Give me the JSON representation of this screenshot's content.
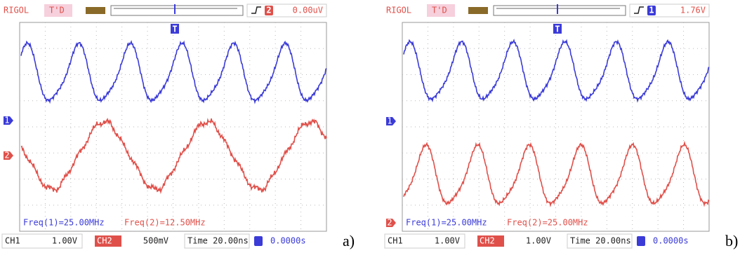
{
  "panels": [
    {
      "brand": "RIGOL",
      "mode": "T'D",
      "trigger_channel": "2",
      "trigger_level": "0.00uV",
      "trigger_marker": "T",
      "channel_markers": [
        "1",
        "2"
      ],
      "measurements": [
        "Freq(1)=25.00MHz",
        "Freq(2)=12.50MHz"
      ],
      "ch1_label": "CH1",
      "ch1_scale": "1.00V",
      "ch2_label": "CH2",
      "ch2_scale": "500mV",
      "timebase": "Time 20.00ns",
      "trigger_offset": "0.0000s",
      "caption": "a)"
    },
    {
      "brand": "RIGOL",
      "mode": "T'D",
      "trigger_channel": "1",
      "trigger_level": "1.76V",
      "trigger_marker": "T",
      "channel_markers": [
        "1",
        "2"
      ],
      "measurements": [
        "Freq(1)=25.00MHz",
        "Freq(2)=25.00MHz"
      ],
      "ch1_label": "CH1",
      "ch1_scale": "1.00V",
      "ch2_label": "CH2",
      "ch2_scale": "1.00V",
      "timebase": "Time 20.00ns",
      "trigger_offset": "0.0000s",
      "caption": "b)"
    }
  ]
}
